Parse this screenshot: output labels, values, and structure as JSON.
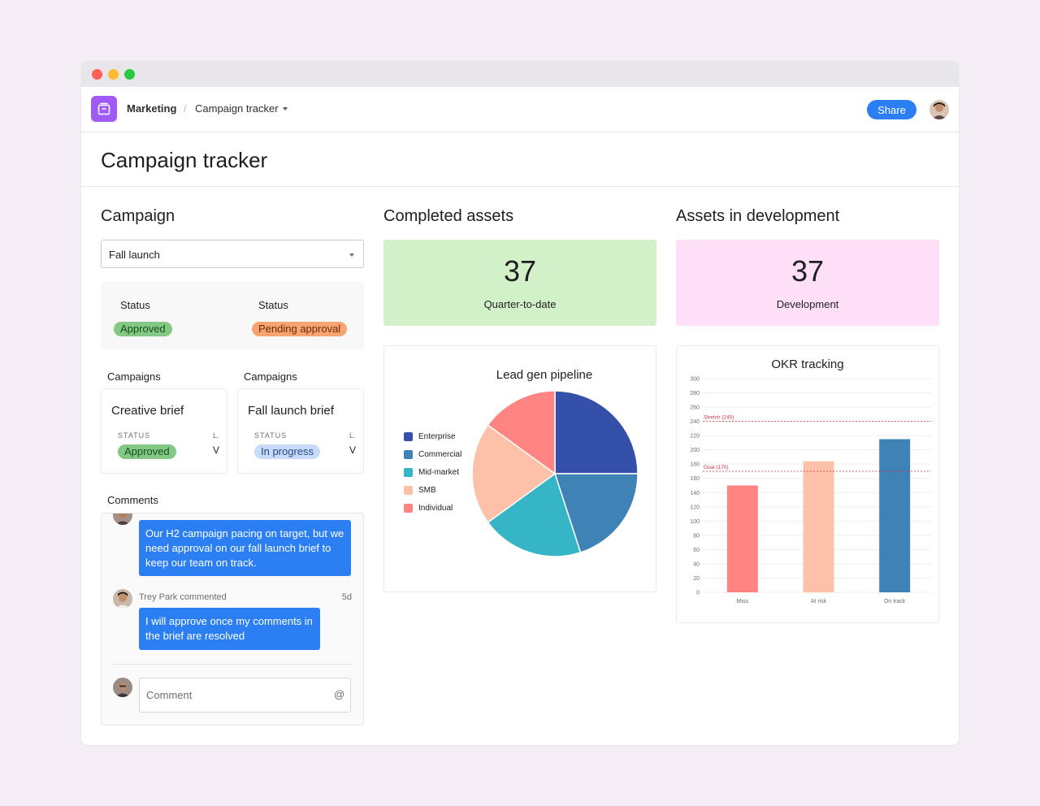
{
  "window": {
    "controls": [
      "close",
      "minimize",
      "maximize"
    ]
  },
  "topbar": {
    "app_icon": "project-icon",
    "breadcrumb_root": "Marketing",
    "breadcrumb_sep": "/",
    "breadcrumb_current": "Campaign tracker",
    "share_label": "Share"
  },
  "page": {
    "title": "Campaign tracker"
  },
  "campaign": {
    "section_title": "Campaign",
    "dropdown_value": "Fall launch",
    "status": [
      {
        "label": "Status",
        "value": "Approved"
      },
      {
        "label": "Status",
        "value": "Pending approval"
      }
    ],
    "cards": [
      {
        "group_label": "Campaigns",
        "title": "Creative brief",
        "status_label": "STATUS",
        "status": "Approved",
        "extra_label": "L.",
        "extra_value": "V"
      },
      {
        "group_label": "Campaigns",
        "title": "Fall launch brief",
        "status_label": "STATUS",
        "status": "In progress",
        "extra_label": "L.",
        "extra_value": "V"
      }
    ]
  },
  "comments": {
    "section_title": "Comments",
    "first_comment": "Our H2 campaign pacing on target, but we need approval on our fall launch brief to keep our team on track.",
    "commenter": "Trey Park commented",
    "time": "5d",
    "second_comment": "I will approve once my comments in the brief are resolved",
    "input_placeholder": "Comment",
    "mention_symbol": "@"
  },
  "completed_assets": {
    "section_title": "Completed assets",
    "value": "37",
    "label": "Quarter-to-date",
    "color": "#d3f1c8"
  },
  "development_assets": {
    "section_title": "Assets in development",
    "value": "37",
    "label": "Development",
    "color": "#fde0f8"
  },
  "chart_data": [
    {
      "type": "pie",
      "title": "Lead gen pipeline",
      "legend_position": "left",
      "categories": [
        "Enterprise",
        "Commercial",
        "Mid-market",
        "SMB",
        "Individual"
      ],
      "values": [
        25,
        20,
        20,
        20,
        15
      ],
      "colors": [
        "#3550a8",
        "#3f83b6",
        "#36b5c6",
        "#fdc0a8",
        "#ff8482"
      ]
    },
    {
      "type": "bar",
      "title": "OKR tracking",
      "categories": [
        "Miss",
        "At risk",
        "On track"
      ],
      "values": [
        150,
        184,
        215
      ],
      "colors": [
        "#ff8482",
        "#fdc0a8",
        "#3f83b6"
      ],
      "ylim": [
        0,
        300
      ],
      "yticks": [
        0,
        20,
        40,
        60,
        80,
        100,
        120,
        140,
        160,
        180,
        200,
        220,
        240,
        260,
        280,
        300
      ],
      "grid": true,
      "reference_lines": [
        {
          "label": "Stretch (240)",
          "value": 240
        },
        {
          "label": "Goal (170)",
          "value": 170
        }
      ],
      "reference_color": "#d0344a"
    }
  ]
}
